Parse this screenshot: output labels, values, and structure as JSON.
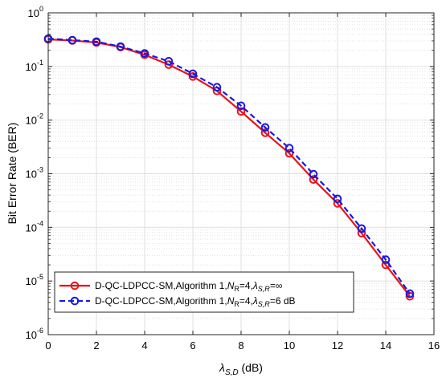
{
  "chart_data": {
    "type": "line",
    "title": "",
    "xlabel": {
      "symbol": "λ",
      "subscript": "S,D",
      "unit": " (dB)"
    },
    "ylabel": "Bit Error Rate (BER)",
    "xlim": [
      0,
      16
    ],
    "ylim": [
      1e-06,
      1
    ],
    "yscale": "log",
    "grid": true,
    "minor_grid": true,
    "legend_position": "bottom-left",
    "x_ticks": [
      "0",
      "2",
      "4",
      "6",
      "8",
      "10",
      "12",
      "14",
      "16"
    ],
    "y_ticks": [
      {
        "base": "10",
        "exp": "0"
      },
      {
        "base": "10",
        "exp": "-1"
      },
      {
        "base": "10",
        "exp": "-2"
      },
      {
        "base": "10",
        "exp": "-3"
      },
      {
        "base": "10",
        "exp": "-4"
      },
      {
        "base": "10",
        "exp": "-5"
      },
      {
        "base": "10",
        "exp": "-6"
      }
    ],
    "series": [
      {
        "name": "D-QC-LDPCC-SM,Algorithm 1,N_R=4,λ_S,R=∞",
        "legend_parts": [
          "D-QC-LDPCC-SM,Algorithm 1,",
          "N",
          "R",
          "=4,",
          "λ",
          "S,R",
          "=∞"
        ],
        "color": "#e8141c",
        "line_style": "solid",
        "marker": "circle",
        "x": [
          0,
          1,
          2,
          3,
          4,
          5,
          6,
          7,
          8,
          9,
          10,
          11,
          12,
          13,
          14,
          15
        ],
        "y": [
          0.32,
          0.305,
          0.28,
          0.23,
          0.165,
          0.108,
          0.065,
          0.035,
          0.0145,
          0.0058,
          0.0024,
          0.00078,
          0.00028,
          7.8e-05,
          2e-05,
          5.2e-06
        ]
      },
      {
        "name": "D-QC-LDPCC-SM,Algorithm 1,N_R=4,λ_S,R=6 dB",
        "legend_parts": [
          "D-QC-LDPCC-SM,Algorithm 1,",
          "N",
          "R",
          "=4,",
          "λ",
          "S,R",
          "=6 dB"
        ],
        "color": "#1a1adc",
        "line_style": "dashed",
        "marker": "circle",
        "x": [
          0,
          1,
          2,
          3,
          4,
          5,
          6,
          7,
          8,
          9,
          10,
          11,
          12,
          13,
          14,
          15
        ],
        "y": [
          0.33,
          0.31,
          0.29,
          0.235,
          0.175,
          0.125,
          0.073,
          0.041,
          0.0185,
          0.0073,
          0.003,
          0.00098,
          0.00034,
          9.5e-05,
          2.5e-05,
          5.8e-06
        ]
      }
    ]
  }
}
